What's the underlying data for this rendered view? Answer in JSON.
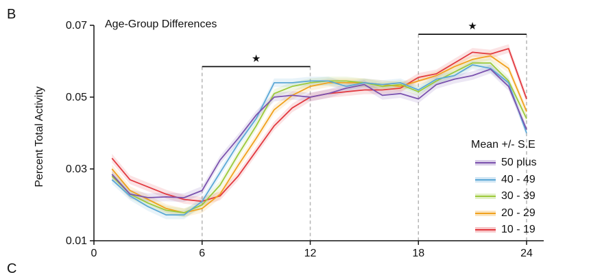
{
  "panel_label": "B",
  "next_panel_label": "C",
  "chart_data": {
    "type": "line",
    "title": "Age-Group Differences",
    "xlabel": "",
    "ylabel": "Percent Total Activity",
    "xlim": [
      0,
      25
    ],
    "ylim": [
      0.01,
      0.07
    ],
    "x_ticks": [
      "0",
      "6",
      "12",
      "18",
      "24"
    ],
    "x_tick_values": [
      0,
      6,
      12,
      18,
      24
    ],
    "y_ticks": [
      "0.01",
      "0.03",
      "0.05",
      "0.07"
    ],
    "y_tick_values": [
      0.01,
      0.03,
      0.05,
      0.07
    ],
    "grid": false,
    "legend_placement": "bottom-right",
    "legend_title": "Mean +/- S.E",
    "x": [
      1,
      2,
      3,
      4,
      5,
      6,
      7,
      8,
      9,
      10,
      11,
      12,
      13,
      14,
      15,
      16,
      17,
      18,
      19,
      20,
      21,
      22,
      23,
      24
    ],
    "series": [
      {
        "name": "50 plus",
        "color": "#7B52AE",
        "values": [
          0.0285,
          0.023,
          0.022,
          0.0222,
          0.022,
          0.024,
          0.0325,
          0.0385,
          0.045,
          0.05,
          0.0505,
          0.05,
          0.051,
          0.0525,
          0.0535,
          0.0505,
          0.051,
          0.0495,
          0.0535,
          0.055,
          0.056,
          0.0578,
          0.053,
          0.041
        ]
      },
      {
        "name": "40 - 49",
        "color": "#5AA7D6",
        "values": [
          0.027,
          0.0225,
          0.0195,
          0.0172,
          0.0172,
          0.021,
          0.029,
          0.037,
          0.044,
          0.054,
          0.054,
          0.0545,
          0.0545,
          0.053,
          0.054,
          0.0535,
          0.054,
          0.052,
          0.055,
          0.056,
          0.059,
          0.058,
          0.054,
          0.04
        ]
      },
      {
        "name": "30 - 39",
        "color": "#9CC93A",
        "values": [
          0.028,
          0.023,
          0.0205,
          0.0185,
          0.0178,
          0.02,
          0.0255,
          0.034,
          0.042,
          0.051,
          0.053,
          0.054,
          0.0545,
          0.0545,
          0.054,
          0.053,
          0.0535,
          0.0515,
          0.0545,
          0.057,
          0.0595,
          0.0595,
          0.0545,
          0.044
        ]
      },
      {
        "name": "20 - 29",
        "color": "#F0A11D",
        "values": [
          0.03,
          0.024,
          0.0215,
          0.019,
          0.0178,
          0.019,
          0.023,
          0.031,
          0.0385,
          0.0465,
          0.0505,
          0.053,
          0.054,
          0.054,
          0.054,
          0.0535,
          0.053,
          0.0545,
          0.056,
          0.0585,
          0.0605,
          0.0615,
          0.058,
          0.046
        ]
      },
      {
        "name": "10 - 19",
        "color": "#E2393F",
        "values": [
          0.033,
          0.027,
          0.025,
          0.023,
          0.0215,
          0.021,
          0.0225,
          0.028,
          0.035,
          0.042,
          0.047,
          0.05,
          0.051,
          0.0515,
          0.052,
          0.052,
          0.0525,
          0.0555,
          0.0565,
          0.0595,
          0.0625,
          0.062,
          0.0635,
          0.0495
        ]
      }
    ],
    "annotations": [
      {
        "type": "significance-bracket",
        "x_start": 6,
        "x_end": 12,
        "y": 0.0585,
        "marker": "★"
      },
      {
        "type": "significance-bracket",
        "x_start": 18,
        "x_end": 24,
        "y": 0.0675,
        "marker": "★"
      }
    ]
  }
}
